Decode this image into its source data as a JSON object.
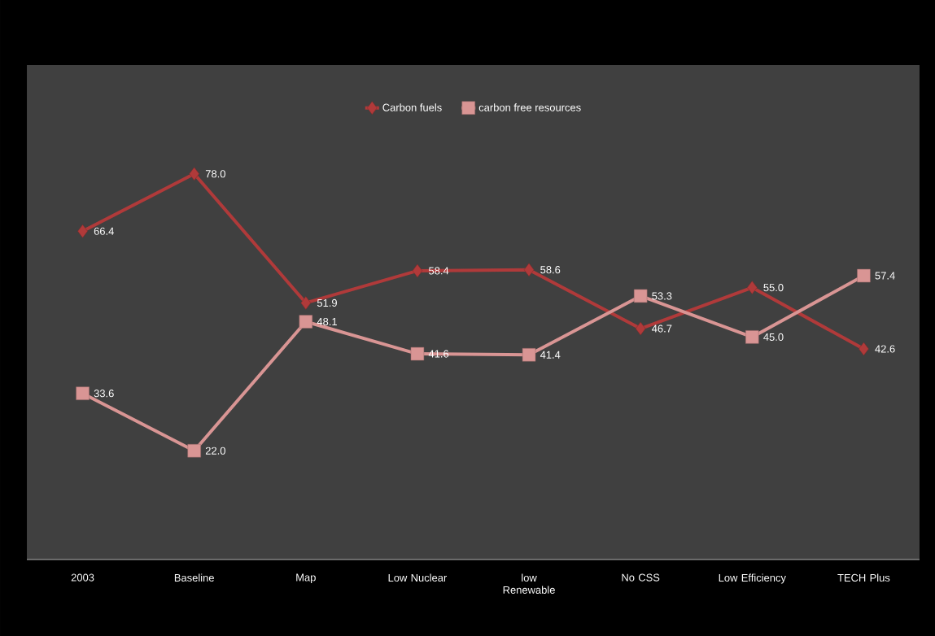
{
  "chart_data": {
    "type": "line",
    "categories": [
      "2003",
      "Baseline",
      "Map",
      "Low Nuclear",
      "low Renewable",
      "No CSS",
      "Low Efficiency",
      "TECH Plus"
    ],
    "series": [
      {
        "name": "Carbon fuels",
        "color": "#b03a3a",
        "marker": "diamond",
        "values": [
          66.4,
          78.0,
          51.9,
          58.4,
          58.6,
          46.7,
          55.0,
          42.6
        ],
        "value_labels": [
          "66.4",
          "78.0",
          "51.9",
          "58.4",
          "58.6",
          "46.7",
          "55.0",
          "42.6"
        ]
      },
      {
        "name": "carbon free resources",
        "color": "#d99594",
        "marker": "square",
        "values": [
          33.6,
          22.0,
          48.1,
          41.6,
          41.4,
          53.3,
          45.0,
          57.4
        ],
        "value_labels": [
          "33.6",
          "22.0",
          "48.1",
          "41.6",
          "41.4",
          "53.3",
          "45.0",
          "57.4"
        ]
      }
    ],
    "ylim": [
      0,
      100
    ],
    "tick_labels": "x",
    "legend": "top",
    "grid": false,
    "line_style": "solid"
  }
}
